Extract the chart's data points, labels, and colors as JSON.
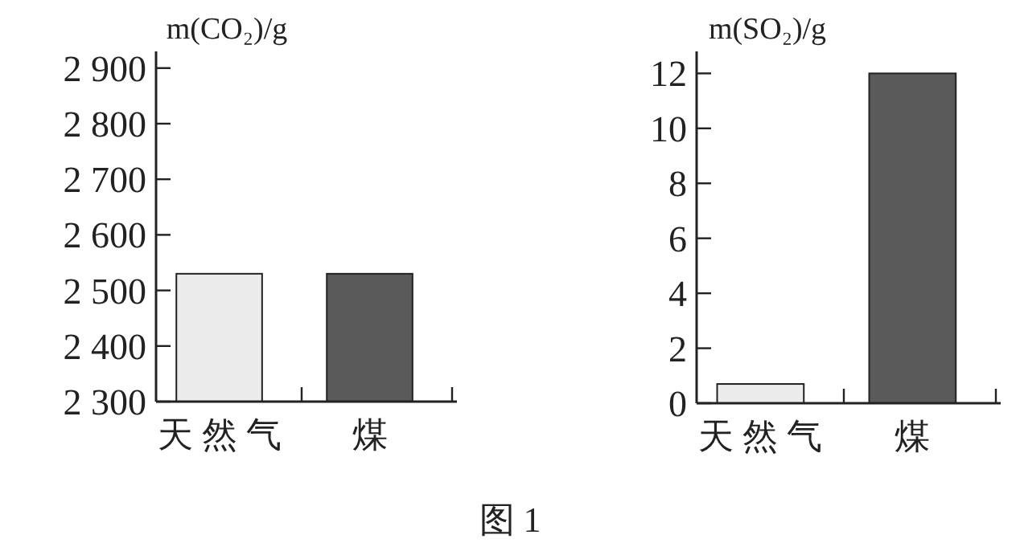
{
  "chart_data": [
    {
      "type": "bar",
      "ylabel": "m(CO₂)/g",
      "categories": [
        "天 然 气",
        "煤"
      ],
      "values": [
        2530,
        2530
      ],
      "colors": [
        "#ececec",
        "#5a5a5a"
      ],
      "ylim": [
        2300,
        2930
      ],
      "yticks": [
        {
          "value": 2300,
          "label": "2 300"
        },
        {
          "value": 2400,
          "label": "2 400"
        },
        {
          "value": 2500,
          "label": "2 500"
        },
        {
          "value": 2600,
          "label": "2 600"
        },
        {
          "value": 2700,
          "label": "2 700"
        },
        {
          "value": 2800,
          "label": "2 800"
        },
        {
          "value": 2900,
          "label": "2 900"
        }
      ]
    },
    {
      "type": "bar",
      "ylabel": "m(SO₂)/g",
      "categories": [
        "天 然 气",
        "煤"
      ],
      "values": [
        0.7,
        12
      ],
      "colors": [
        "#ececec",
        "#5a5a5a"
      ],
      "ylim": [
        0,
        12.8
      ],
      "yticks": [
        0,
        2,
        4,
        6,
        8,
        10,
        12
      ],
      "annotations": [
        "图 1"
      ]
    }
  ]
}
